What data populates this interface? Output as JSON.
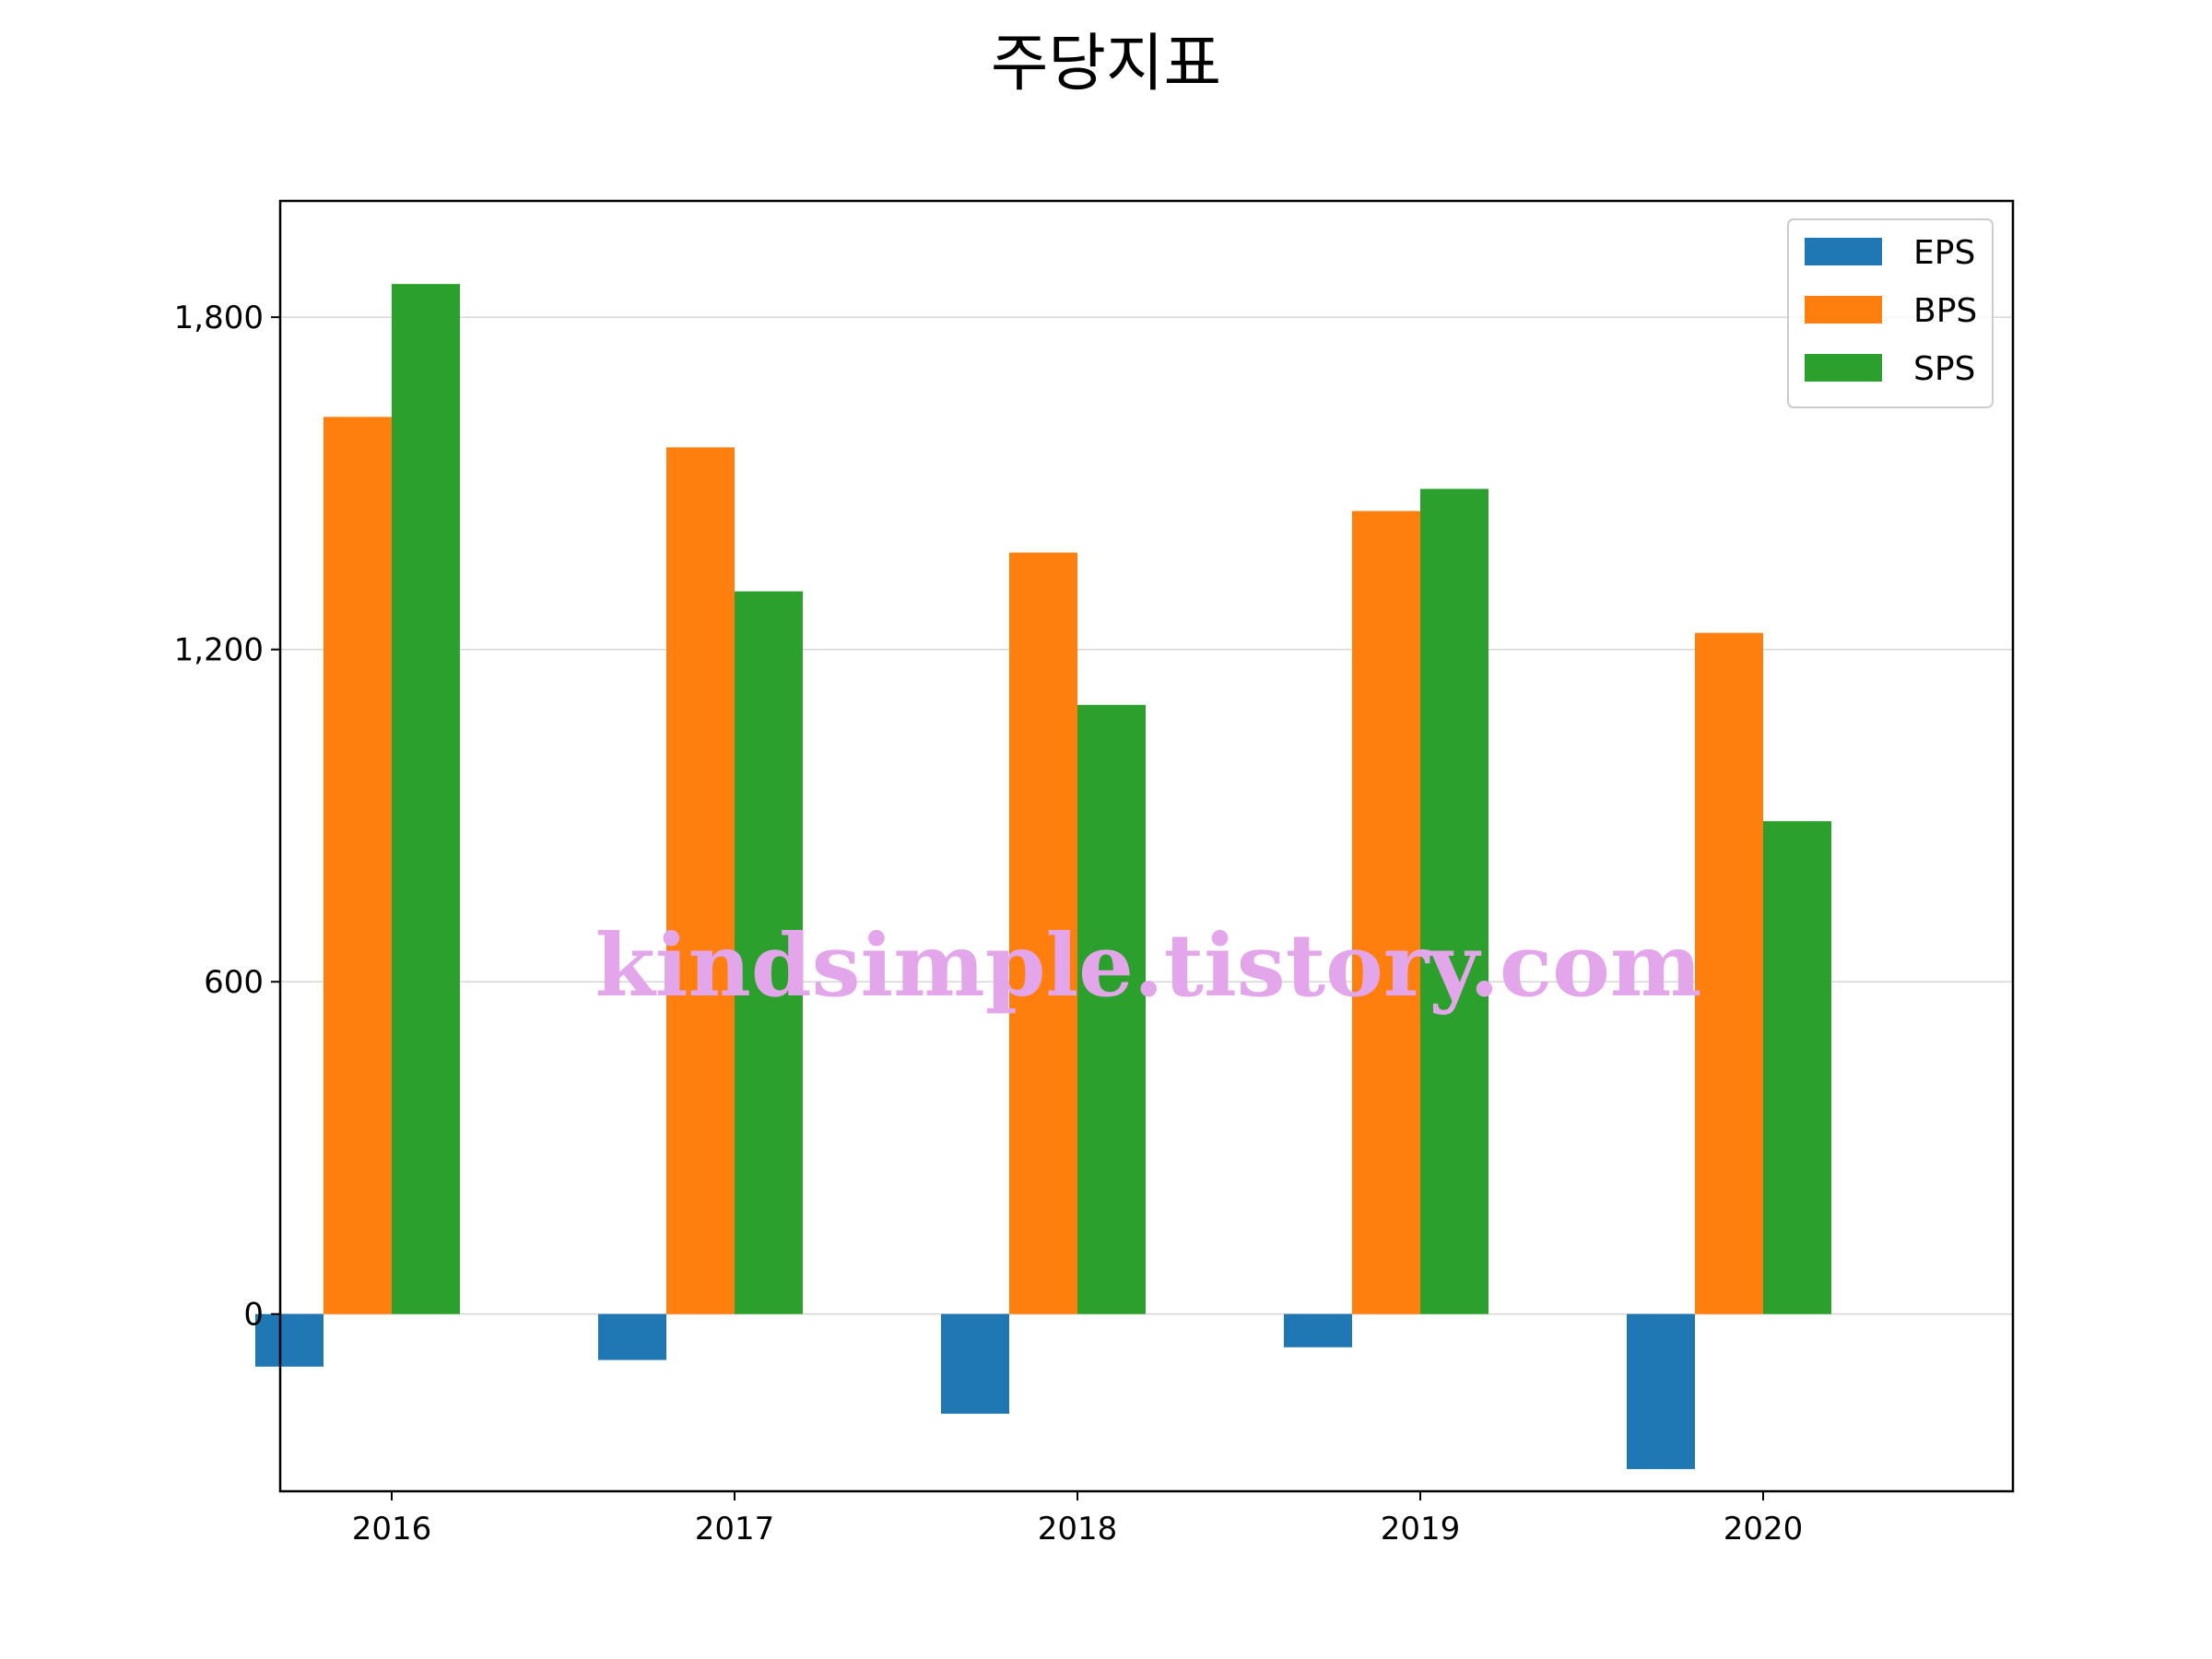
{
  "chart_data": {
    "type": "bar",
    "title": "주당지표",
    "xlabel": "",
    "ylabel": "",
    "categories": [
      "2016",
      "2017",
      "2018",
      "2019",
      "2020"
    ],
    "series": [
      {
        "name": "EPS",
        "color": "#1f77b4",
        "values": [
          -95,
          -83,
          -180,
          -60,
          -280
        ]
      },
      {
        "name": "BPS",
        "color": "#ff7f0e",
        "values": [
          1620,
          1565,
          1375,
          1450,
          1230
        ]
      },
      {
        "name": "SPS",
        "color": "#2ca02c",
        "values": [
          1860,
          1305,
          1100,
          1490,
          890
        ]
      }
    ],
    "ylim": [
      -320,
      2010
    ],
    "yticks": [
      0,
      600,
      1200,
      1800
    ],
    "ytick_labels": [
      "0",
      "600",
      "1,200",
      "1,800"
    ],
    "grid": "y",
    "legend_position": "top-right",
    "watermark": "kindsimple.tistory.com"
  }
}
